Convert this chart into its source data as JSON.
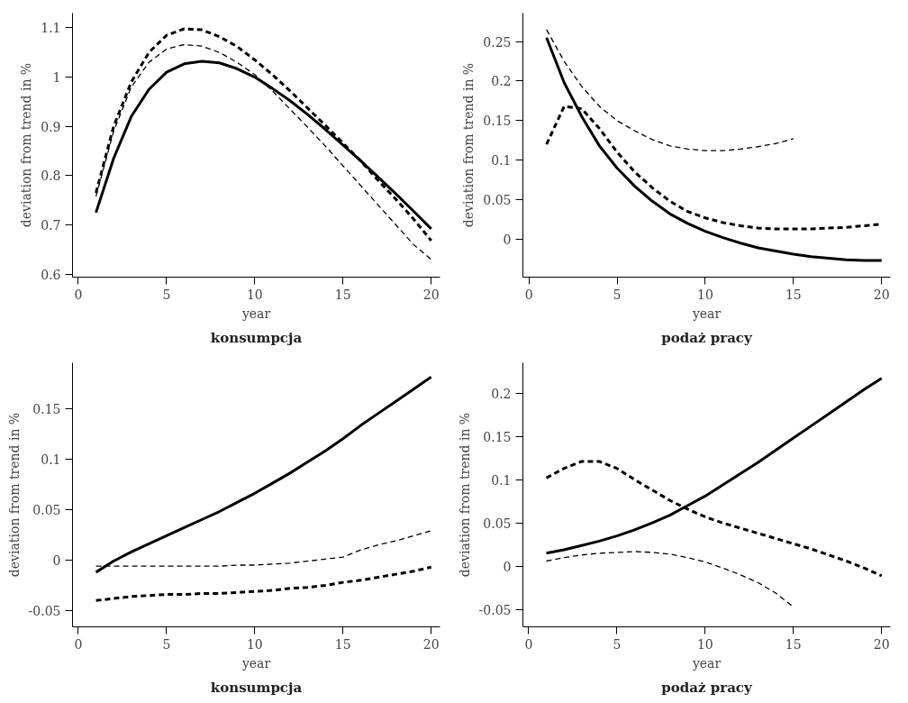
{
  "chart_data": [
    {
      "type": "line",
      "title": "konsumpcja",
      "xlabel": "year",
      "ylabel": "deviation from trend in %",
      "grid": false,
      "x": [
        1,
        2,
        3,
        4,
        5,
        6,
        7,
        8,
        9,
        10,
        11,
        12,
        13,
        14,
        15,
        16,
        17,
        18,
        19,
        20
      ],
      "xlim": [
        -0.33,
        20.5
      ],
      "xticks": [
        0,
        5,
        10,
        15,
        20
      ],
      "ylim": [
        0.594,
        1.13
      ],
      "yticks": [
        0.6,
        0.7,
        0.8,
        0.9,
        1,
        1.1
      ],
      "series": [
        {
          "color": "#000000",
          "line_style": "solid",
          "values": [
            0.725,
            0.835,
            0.92,
            0.975,
            1.01,
            1.027,
            1.032,
            1.029,
            1.017,
            1.0,
            0.977,
            0.952,
            0.924,
            0.894,
            0.862,
            0.83,
            0.797,
            0.763,
            0.728,
            0.692
          ]
        },
        {
          "color": "#000000",
          "line_style": "dashed",
          "values": [
            0.765,
            0.9,
            0.99,
            1.05,
            1.085,
            1.098,
            1.096,
            1.082,
            1.062,
            1.035,
            1.005,
            0.972,
            0.937,
            0.902,
            0.866,
            0.83,
            0.79,
            0.752,
            0.712,
            0.668
          ]
        },
        {
          "color": "#000000",
          "line_style": "dashed",
          "values": [
            0.758,
            0.89,
            0.98,
            1.03,
            1.057,
            1.066,
            1.063,
            1.05,
            1.03,
            1.005,
            0.972,
            0.935,
            0.898,
            0.86,
            0.82,
            0.78,
            0.74,
            0.7,
            0.66,
            0.63
          ]
        }
      ]
    },
    {
      "type": "line",
      "title": "podaż pracy",
      "xlabel": "year",
      "ylabel": "deviation from trend in %",
      "grid": false,
      "x": [
        1,
        2,
        3,
        4,
        5,
        6,
        7,
        8,
        9,
        10,
        11,
        12,
        13,
        14,
        15,
        16,
        17,
        18,
        19,
        20
      ],
      "xlim": [
        -0.34,
        20.5
      ],
      "xticks": [
        0,
        5,
        10,
        15,
        20
      ],
      "ylim": [
        -0.048,
        0.286
      ],
      "yticks": [
        0,
        0.05,
        0.1,
        0.15,
        0.2,
        0.25
      ],
      "series": [
        {
          "color": "#000000",
          "line_style": "solid",
          "values": [
            0.255,
            0.198,
            0.155,
            0.118,
            0.09,
            0.067,
            0.048,
            0.032,
            0.02,
            0.01,
            0.002,
            -0.005,
            -0.011,
            -0.015,
            -0.019,
            -0.022,
            -0.024,
            -0.026,
            -0.027,
            -0.027
          ]
        },
        {
          "color": "#000000",
          "line_style": "dashed",
          "values": [
            0.12,
            0.168,
            0.165,
            0.14,
            0.11,
            0.085,
            0.065,
            0.048,
            0.035,
            0.027,
            0.021,
            0.017,
            0.014,
            0.013,
            0.013,
            0.013,
            0.014,
            0.015,
            0.017,
            0.019
          ]
        },
        {
          "color": "#000000",
          "line_style": "dashed",
          "values": [
            0.265,
            0.225,
            0.193,
            0.168,
            0.15,
            0.137,
            0.126,
            0.118,
            0.114,
            0.112,
            0.112,
            0.114,
            0.117,
            0.121,
            0.127,
            null,
            null,
            null,
            null,
            null
          ]
        }
      ]
    },
    {
      "type": "line",
      "title": "konsumpcja",
      "xlabel": "year",
      "ylabel": "deviation from trend in %",
      "grid": false,
      "x": [
        1,
        2,
        3,
        4,
        5,
        6,
        7,
        8,
        9,
        10,
        11,
        12,
        13,
        14,
        15,
        16,
        17,
        18,
        19,
        20
      ],
      "xlim": [
        -0.33,
        20.5
      ],
      "xticks": [
        0,
        5,
        10,
        15,
        20
      ],
      "ylim": [
        -0.066,
        0.195
      ],
      "yticks": [
        -0.05,
        0,
        0.05,
        0.1,
        0.15
      ],
      "series": [
        {
          "color": "#000000",
          "line_style": "solid",
          "values": [
            -0.012,
            -0.001,
            0.008,
            0.016,
            0.024,
            0.032,
            0.04,
            0.048,
            0.057,
            0.066,
            0.076,
            0.086,
            0.097,
            0.108,
            0.12,
            0.133,
            0.145,
            0.157,
            0.169,
            0.181
          ]
        },
        {
          "color": "#000000",
          "line_style": "dashed",
          "values": [
            -0.04,
            -0.038,
            -0.036,
            -0.035,
            -0.034,
            -0.034,
            -0.033,
            -0.033,
            -0.032,
            -0.031,
            -0.03,
            -0.028,
            -0.027,
            -0.025,
            -0.022,
            -0.02,
            -0.017,
            -0.014,
            -0.011,
            -0.007
          ]
        },
        {
          "color": "#000000",
          "line_style": "dashed",
          "values": [
            -0.006,
            -0.006,
            -0.006,
            -0.006,
            -0.006,
            -0.006,
            -0.006,
            -0.006,
            -0.005,
            -0.005,
            -0.004,
            -0.003,
            -0.001,
            0.001,
            0.003,
            0.01,
            0.015,
            0.019,
            0.024,
            0.029
          ]
        }
      ]
    },
    {
      "type": "line",
      "title": "podaż pracy",
      "xlabel": "year",
      "ylabel": "deviation from trend in %",
      "grid": false,
      "x": [
        1,
        2,
        3,
        4,
        5,
        6,
        7,
        8,
        9,
        10,
        11,
        12,
        13,
        14,
        15,
        16,
        17,
        18,
        19,
        20
      ],
      "xlim": [
        -0.33,
        20.5
      ],
      "xticks": [
        0,
        5,
        10,
        15,
        20
      ],
      "ylim": [
        -0.07,
        0.235
      ],
      "yticks": [
        -0.05,
        0,
        0.05,
        0.1,
        0.15,
        0.2
      ],
      "series": [
        {
          "color": "#000000",
          "line_style": "solid",
          "values": [
            0.015,
            0.019,
            0.024,
            0.029,
            0.035,
            0.042,
            0.05,
            0.059,
            0.07,
            0.081,
            0.094,
            0.107,
            0.12,
            0.134,
            0.148,
            0.162,
            0.176,
            0.19,
            0.204,
            0.217
          ]
        },
        {
          "color": "#000000",
          "line_style": "dashed",
          "values": [
            0.102,
            0.113,
            0.121,
            0.121,
            0.113,
            0.1,
            0.088,
            0.076,
            0.066,
            0.057,
            0.05,
            0.044,
            0.038,
            0.032,
            0.026,
            0.02,
            0.013,
            0.006,
            -0.002,
            -0.011
          ]
        },
        {
          "color": "#000000",
          "line_style": "dashed",
          "values": [
            0.006,
            0.01,
            0.013,
            0.015,
            0.016,
            0.017,
            0.016,
            0.014,
            0.01,
            0.005,
            -0.002,
            -0.01,
            -0.019,
            -0.031,
            -0.047,
            null,
            null,
            null,
            null,
            null
          ]
        }
      ]
    }
  ]
}
